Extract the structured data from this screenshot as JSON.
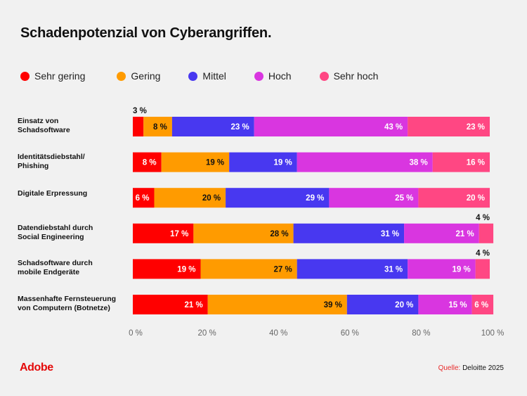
{
  "header": {
    "title": "Schadenpotenzial von Cyberangriffen."
  },
  "footer": {
    "brand": "Adobe",
    "source_label": "Quelle:",
    "source_value": "Deloitte 2025"
  },
  "chart_data": {
    "type": "bar",
    "orientation": "horizontal",
    "stacked": true,
    "title": "Schadenpotenzial von Cyberangriffen.",
    "xlabel": "",
    "ylabel": "",
    "xlim": [
      0,
      100
    ],
    "x_ticks": [
      "0 %",
      "20 %",
      "40 %",
      "60 %",
      "80 %",
      "100 %"
    ],
    "x_tick_values": [
      0,
      20,
      40,
      60,
      80,
      100
    ],
    "grid": false,
    "legend_position": "top-left",
    "categories": [
      "Einsatz von\nSchadsoftware",
      "Identitätsdiebstahl/\nPhishing",
      "Digitale Erpressung",
      "Datendiebstahl durch\nSocial Engineering",
      "Schadsoftware durch\nmobile Endgeräte",
      "Massenhafte Fernsteuerung\nvon Computern (Botnetze)"
    ],
    "series": [
      {
        "name": "Sehr gering",
        "color": "#ff0000",
        "label_color": "#ffffff",
        "values": [
          3,
          8,
          6,
          17,
          19,
          21
        ]
      },
      {
        "name": "Gering",
        "color": "#ff9b00",
        "label_color": "#111111",
        "values": [
          8,
          19,
          20,
          28,
          27,
          39
        ]
      },
      {
        "name": "Mittel",
        "color": "#4838f0",
        "label_color": "#ffffff",
        "values": [
          23,
          19,
          29,
          31,
          31,
          20
        ]
      },
      {
        "name": "Hoch",
        "color": "#d936e0",
        "label_color": "#ffffff",
        "values": [
          43,
          38,
          25,
          21,
          19,
          15
        ]
      },
      {
        "name": "Sehr hoch",
        "color": "#ff4783",
        "label_color": "#ffffff",
        "values": [
          23,
          16,
          20,
          4,
          4,
          6
        ]
      }
    ],
    "value_suffix": " %",
    "outside_labels": [
      {
        "row": 0,
        "series": 0,
        "text": "3 %"
      },
      {
        "row": 3,
        "series": 4,
        "text": "4 %"
      },
      {
        "row": 4,
        "series": 4,
        "text": "4 %"
      }
    ]
  }
}
